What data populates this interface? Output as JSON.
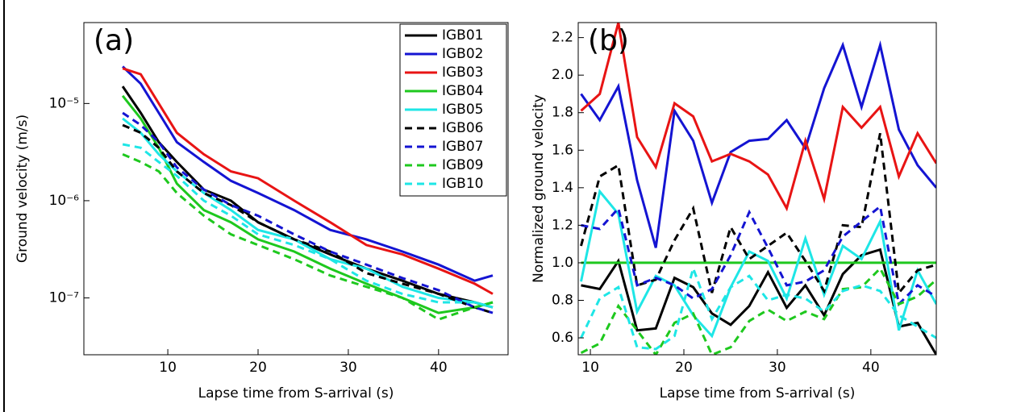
{
  "chart_data": [
    {
      "type": "line",
      "annotation": "(a)",
      "xlabel": "Lapse time from S-arrival (s)",
      "ylabel": "Ground velocity (m/s)",
      "log_y": true,
      "legend": "upper right",
      "xlim": [
        0.7,
        47.7
      ],
      "xticks": [
        10,
        20,
        30,
        40
      ],
      "ylim": [
        2.6e-08,
        6.8e-05
      ],
      "yticks": [
        {
          "value": 1e-05,
          "label": "10⁻⁵"
        },
        {
          "value": 1e-06,
          "label": "10⁻⁶"
        },
        {
          "value": 1e-07,
          "label": "10⁻⁷"
        }
      ],
      "x": [
        5,
        7,
        9,
        11,
        14,
        17,
        20,
        24,
        28,
        32,
        36,
        40,
        44,
        46
      ],
      "series": [
        {
          "name": "IGB01",
          "color": "#000000",
          "dashed": false,
          "values": [
            1.5e-05,
            8e-06,
            4e-06,
            2.5e-06,
            1.3e-06,
            1e-06,
            6e-07,
            4e-07,
            2.8e-07,
            2e-07,
            1.5e-07,
            1.1e-07,
            9e-08,
            8e-08
          ]
        },
        {
          "name": "IGB02",
          "color": "#1414d2",
          "dashed": false,
          "values": [
            2.4e-05,
            1.6e-05,
            8e-06,
            4e-06,
            2.5e-06,
            1.6e-06,
            1.2e-06,
            8e-07,
            5e-07,
            4e-07,
            3e-07,
            2.2e-07,
            1.5e-07,
            1.7e-07
          ]
        },
        {
          "name": "IGB03",
          "color": "#e81414",
          "dashed": false,
          "values": [
            2.3e-05,
            2e-05,
            1e-05,
            5e-06,
            3e-06,
            2e-06,
            1.7e-06,
            1e-06,
            6e-07,
            3.5e-07,
            2.8e-07,
            2e-07,
            1.4e-07,
            1.1e-07
          ]
        },
        {
          "name": "IGB04",
          "color": "#1ec81e",
          "dashed": false,
          "values": [
            1.2e-05,
            7e-06,
            3.5e-06,
            1.5e-06,
            8e-07,
            6e-07,
            4e-07,
            3e-07,
            2e-07,
            1.4e-07,
            1e-07,
            7e-08,
            8e-08,
            9e-08
          ]
        },
        {
          "name": "IGB05",
          "color": "#1ee6e6",
          "dashed": false,
          "values": [
            7e-06,
            5e-06,
            3e-06,
            2e-06,
            1.2e-06,
            8e-07,
            5e-07,
            4e-07,
            2.5e-07,
            2e-07,
            1.3e-07,
            1e-07,
            9e-08,
            8e-08
          ]
        },
        {
          "name": "IGB06",
          "color": "#000000",
          "dashed": true,
          "values": [
            6e-06,
            5e-06,
            3.5e-06,
            2e-06,
            1.2e-06,
            9e-07,
            6e-07,
            4e-07,
            3e-07,
            1.8e-07,
            1.4e-07,
            1.1e-07,
            8e-08,
            7e-08
          ]
        },
        {
          "name": "IGB07",
          "color": "#1414d2",
          "dashed": true,
          "values": [
            8e-06,
            6e-06,
            4e-06,
            2.2e-06,
            1.3e-06,
            9e-07,
            7e-07,
            4.5e-07,
            3e-07,
            2.2e-07,
            1.6e-07,
            1.2e-07,
            8e-08,
            7e-08
          ]
        },
        {
          "name": "IGB09",
          "color": "#1ec81e",
          "dashed": true,
          "values": [
            3e-06,
            2.5e-06,
            2e-06,
            1.2e-06,
            7e-07,
            4.5e-07,
            3.5e-07,
            2.5e-07,
            1.7e-07,
            1.3e-07,
            1e-07,
            6e-08,
            8e-08,
            9e-08
          ]
        },
        {
          "name": "IGB10",
          "color": "#1ee6e6",
          "dashed": true,
          "values": [
            3.8e-06,
            3.5e-06,
            2.5e-06,
            1.8e-06,
            1e-06,
            7e-07,
            4.5e-07,
            3.5e-07,
            2.5e-07,
            1.5e-07,
            1.1e-07,
            9e-08,
            9e-08,
            8e-08
          ]
        }
      ]
    },
    {
      "type": "line",
      "annotation": "(b)",
      "xlabel": "Lapse time from S-arrival (s)",
      "ylabel": "Normalized ground velocity",
      "log_y": false,
      "xlim": [
        8.7,
        47
      ],
      "xticks": [
        10,
        20,
        30,
        40
      ],
      "ylim": [
        0.51,
        2.28
      ],
      "yticks": [
        0.6,
        0.8,
        {
          "value": 1,
          "label": "1.0"
        },
        1.2,
        1.4,
        1.6,
        1.8,
        {
          "value": 2,
          "label": "2.0"
        },
        2.2
      ],
      "x": [
        9,
        11,
        13,
        15,
        17,
        19,
        21,
        23,
        25,
        27,
        29,
        31,
        33,
        35,
        37,
        39,
        41,
        43,
        45,
        47
      ],
      "series": [
        {
          "name": "IGB01",
          "color": "#000000",
          "dashed": false,
          "values": [
            0.88,
            0.86,
            1.01,
            0.64,
            0.65,
            0.92,
            0.87,
            0.73,
            0.67,
            0.77,
            0.95,
            0.76,
            0.88,
            0.72,
            0.94,
            1.04,
            1.07,
            0.66,
            0.68,
            0.51
          ]
        },
        {
          "name": "IGB02",
          "color": "#1414d2",
          "dashed": false,
          "values": [
            1.9,
            1.76,
            1.94,
            1.44,
            1.08,
            1.81,
            1.65,
            1.32,
            1.59,
            1.65,
            1.66,
            1.76,
            1.61,
            1.93,
            2.16,
            1.83,
            2.16,
            1.71,
            1.52,
            1.4
          ]
        },
        {
          "name": "IGB03",
          "color": "#e81414",
          "dashed": false,
          "values": [
            1.81,
            1.9,
            2.28,
            1.67,
            1.51,
            1.85,
            1.78,
            1.54,
            1.58,
            1.54,
            1.47,
            1.29,
            1.65,
            1.34,
            1.83,
            1.72,
            1.83,
            1.46,
            1.69,
            1.53
          ]
        },
        {
          "name": "IGB04",
          "color": "#1ec81e",
          "dashed": false,
          "values": [
            1,
            1,
            1,
            1,
            1,
            1,
            1,
            1,
            1,
            1,
            1,
            1,
            1,
            1,
            1,
            1,
            1,
            1,
            1,
            1
          ]
        },
        {
          "name": "IGB05",
          "color": "#1ee6e6",
          "dashed": false,
          "values": [
            0.9,
            1.38,
            1.26,
            0.74,
            0.93,
            0.88,
            0.72,
            0.61,
            0.87,
            1.06,
            1.01,
            0.81,
            1.13,
            0.83,
            1.09,
            1.02,
            1.22,
            0.64,
            0.96,
            0.78
          ]
        },
        {
          "name": "IGB06",
          "color": "#000000",
          "dashed": true,
          "values": [
            1.09,
            1.46,
            1.52,
            0.88,
            0.91,
            1.12,
            1.29,
            0.84,
            1.19,
            1.02,
            1.09,
            1.16,
            1.01,
            0.85,
            1.2,
            1.19,
            1.69,
            0.84,
            0.96,
            0.99
          ]
        },
        {
          "name": "IGB07",
          "color": "#1414d2",
          "dashed": true,
          "values": [
            1.2,
            1.18,
            1.29,
            0.88,
            0.92,
            0.88,
            0.81,
            0.86,
            1.04,
            1.27,
            1.08,
            0.88,
            0.9,
            0.96,
            1.14,
            1.22,
            1.3,
            0.78,
            0.88,
            0.82
          ]
        },
        {
          "name": "IGB09",
          "color": "#1ec81e",
          "dashed": true,
          "values": [
            0.52,
            0.57,
            0.77,
            0.64,
            0.51,
            0.68,
            0.73,
            0.51,
            0.55,
            0.69,
            0.75,
            0.69,
            0.74,
            0.7,
            0.86,
            0.87,
            0.97,
            0.78,
            0.82,
            0.91
          ]
        },
        {
          "name": "IGB10",
          "color": "#1ee6e6",
          "dashed": true,
          "values": [
            0.6,
            0.81,
            0.87,
            0.55,
            0.54,
            0.61,
            0.97,
            0.7,
            0.87,
            0.93,
            0.8,
            0.83,
            0.81,
            0.74,
            0.85,
            0.88,
            0.85,
            0.72,
            0.66,
            0.6
          ]
        }
      ]
    }
  ]
}
